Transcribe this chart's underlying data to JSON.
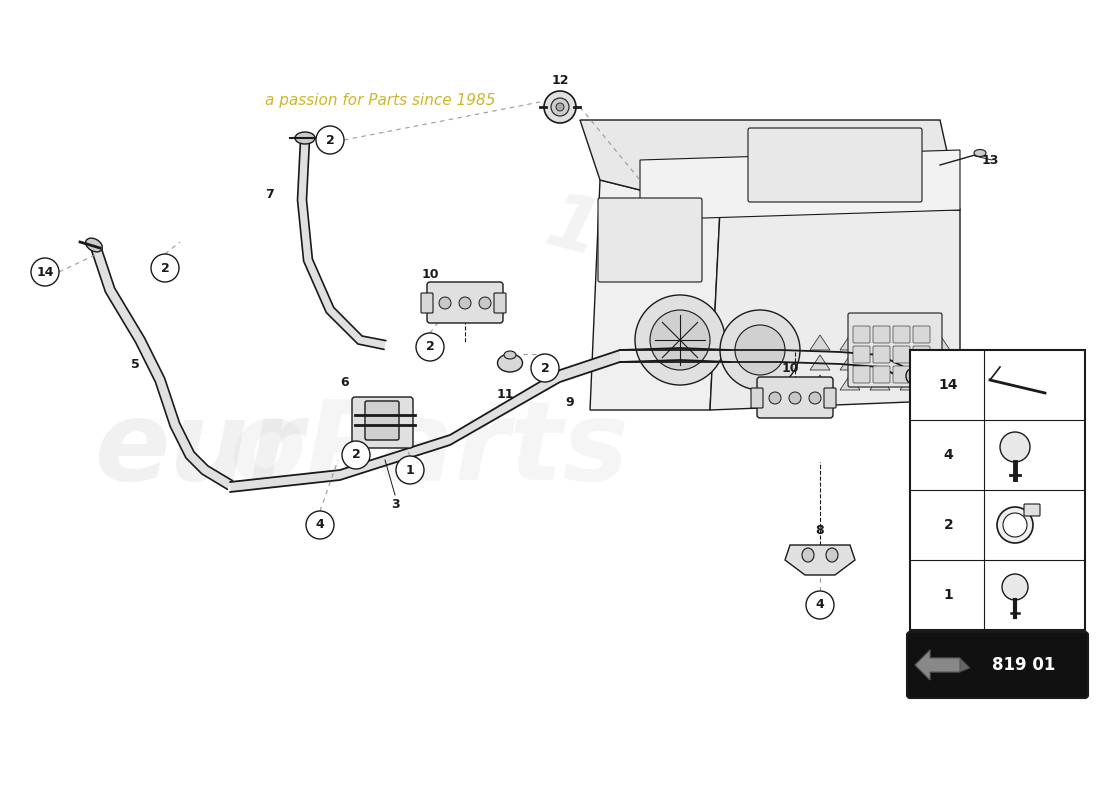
{
  "bg_color": "#ffffff",
  "part_code": "819 01",
  "watermark_text1": "euroParts",
  "watermark_text2": "a passion for Parts since 1985",
  "legend_items": [
    {
      "num": "14"
    },
    {
      "num": "4"
    },
    {
      "num": "2"
    },
    {
      "num": "1"
    }
  ],
  "line_color": "#1a1a1a",
  "fill_light": "#e8e8e8",
  "fill_mid": "#d0d0d0",
  "dashed_color": "#999999",
  "circle_label_color": "#1a1a1a",
  "watermark_color1": "#d8d8d8",
  "watermark_color2": "#c8a800"
}
